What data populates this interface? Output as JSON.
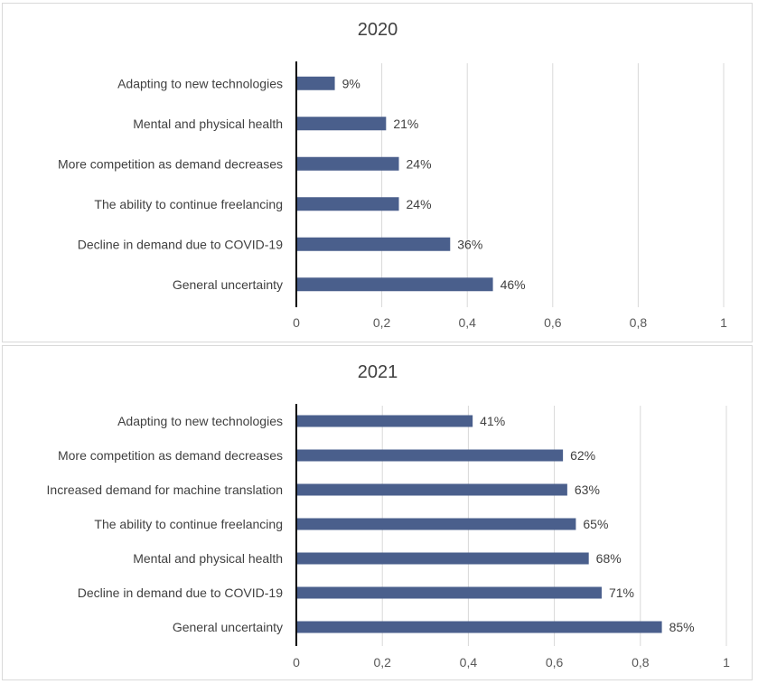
{
  "chart_data": [
    {
      "type": "bar",
      "orientation": "horizontal",
      "title": "2020",
      "categories": [
        "Adapting to new technologies",
        "Mental and physical health",
        "More competition as demand decreases",
        "The ability to continue freelancing",
        "Decline in demand due to COVID-19",
        "General uncertainty"
      ],
      "values": [
        0.09,
        0.21,
        0.24,
        0.24,
        0.36,
        0.46
      ],
      "data_labels": [
        "9%",
        "21%",
        "24%",
        "24%",
        "36%",
        "46%"
      ],
      "xlim": [
        0,
        1
      ],
      "x_ticks": [
        "0",
        "0,2",
        "0,4",
        "0,6",
        "0,8",
        "1"
      ],
      "grid": "vertical",
      "bar_color": "#4a5f8c"
    },
    {
      "type": "bar",
      "orientation": "horizontal",
      "title": "2021",
      "categories": [
        "Adapting to new technologies",
        "More competition as demand decreases",
        "Increased demand for machine translation",
        "The ability to continue freelancing",
        "Mental and physical health",
        "Decline in demand due to COVID-19",
        "General uncertainty"
      ],
      "values": [
        0.41,
        0.62,
        0.63,
        0.65,
        0.68,
        0.71,
        0.85
      ],
      "data_labels": [
        "41%",
        "62%",
        "63%",
        "65%",
        "68%",
        "71%",
        "85%"
      ],
      "xlim": [
        0,
        1
      ],
      "x_ticks": [
        "0",
        "0,2",
        "0,4",
        "0,6",
        "0,8",
        "1"
      ],
      "grid": "vertical",
      "bar_color": "#4a5f8c"
    }
  ]
}
